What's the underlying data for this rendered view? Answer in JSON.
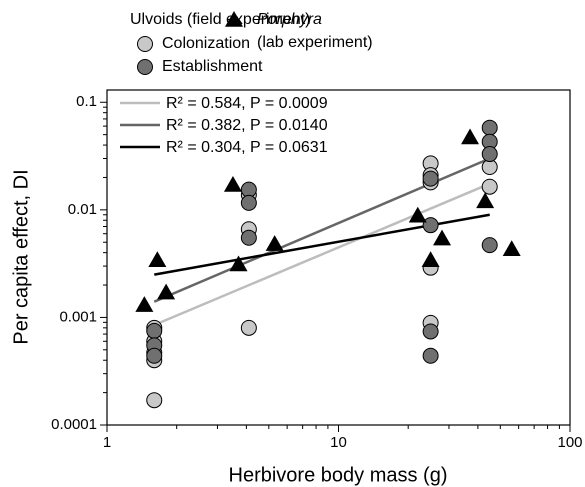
{
  "chart_data": {
    "type": "scatter",
    "xlabel": "Herbivore body mass (g)",
    "ylabel": "Per capita effect, DI",
    "xscale": "log",
    "yscale": "log",
    "xlim": [
      1,
      100
    ],
    "ylim": [
      0.0001,
      0.13
    ],
    "xticks": [
      1,
      10,
      100
    ],
    "yticks": [
      0.0001,
      0.001,
      0.01,
      0.1
    ],
    "legend_group_title": "Ulvoids (field experiment)",
    "legend_note": "(lab experiment)",
    "series": [
      {
        "name": "Colonization",
        "color": "#c8c8c8",
        "marker": "circle",
        "x": [
          1.6,
          1.6,
          1.6,
          1.6,
          1.6,
          4.1,
          4.1,
          4.1,
          25,
          25,
          25,
          25,
          25,
          45,
          45
        ],
        "values": [
          0.0008,
          0.0006,
          0.00047,
          0.0004,
          0.00017,
          0.0138,
          0.0066,
          0.0008,
          0.027,
          0.021,
          0.018,
          0.0029,
          0.00089,
          0.025,
          0.0164
        ]
      },
      {
        "name": "Establishment",
        "color": "#707070",
        "marker": "circle",
        "x": [
          1.6,
          1.6,
          1.6,
          4.1,
          4.1,
          4.1,
          25,
          25,
          25,
          25,
          45,
          45,
          45,
          45
        ],
        "values": [
          0.00075,
          0.00055,
          0.00044,
          0.0154,
          0.0116,
          0.0055,
          0.0195,
          0.0072,
          0.00074,
          0.00044,
          0.058,
          0.043,
          0.033,
          0.0047
        ]
      },
      {
        "name": "Porphyra",
        "color": "#000000",
        "marker": "triangle",
        "x": [
          1.45,
          1.65,
          1.8,
          3.5,
          3.7,
          5.3,
          22,
          25,
          28,
          37,
          43,
          56
        ],
        "values": [
          0.0013,
          0.0034,
          0.0017,
          0.017,
          0.0031,
          0.0048,
          0.0088,
          0.0034,
          0.0054,
          0.047,
          0.012,
          0.0043
        ]
      }
    ],
    "fits": [
      {
        "label": "R² = 0.584, P = 0.0009",
        "color": "#bdbdbd",
        "x": [
          1.6,
          45
        ],
        "values": [
          0.00085,
          0.0175
        ]
      },
      {
        "label": "R² = 0.382, P = 0.0140",
        "color": "#666666",
        "x": [
          1.6,
          45
        ],
        "values": [
          0.0014,
          0.03
        ]
      },
      {
        "label": "R² = 0.304, P = 0.0631",
        "color": "#000000",
        "x": [
          1.6,
          45
        ],
        "values": [
          0.0025,
          0.009
        ]
      }
    ]
  }
}
